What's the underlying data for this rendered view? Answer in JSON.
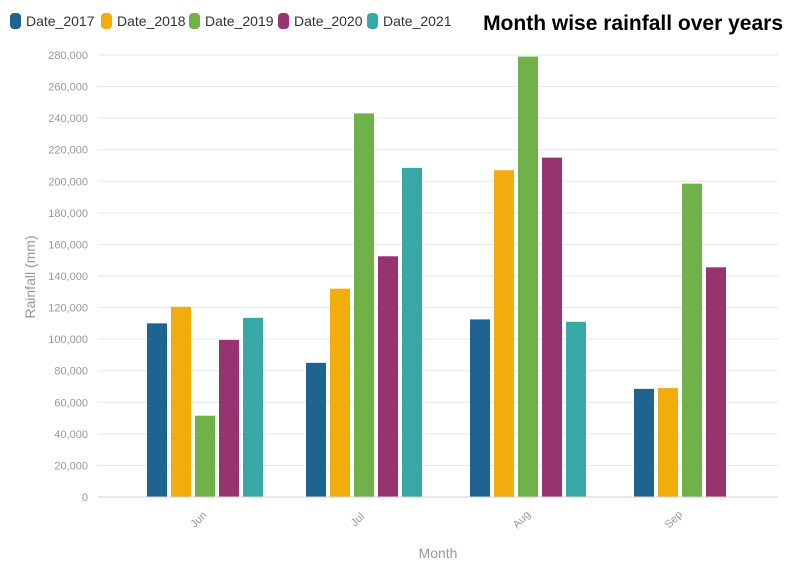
{
  "chart_data": {
    "type": "bar",
    "title": "Month wise rainfall over years",
    "xlabel": "Month",
    "ylabel": "Rainfall (mm)",
    "ylim": [
      0,
      280000
    ],
    "ytick_step": 20000,
    "grid": true,
    "legend_position": "top-left",
    "categories": [
      "Jun",
      "Jul",
      "Aug",
      "Sep"
    ],
    "series": [
      {
        "name": "Date_2017",
        "color": "#1f6391",
        "values": [
          110000,
          85000,
          112500,
          68500
        ]
      },
      {
        "name": "Date_2018",
        "color": "#f0ad0c",
        "values": [
          120500,
          132000,
          207000,
          69000
        ]
      },
      {
        "name": "Date_2019",
        "color": "#71b14a",
        "values": [
          51500,
          243000,
          279000,
          198500
        ]
      },
      {
        "name": "Date_2020",
        "color": "#97346f",
        "values": [
          99500,
          152500,
          215000,
          145500
        ]
      },
      {
        "name": "Date_2021",
        "color": "#38a8a6",
        "values": [
          113500,
          208500,
          111000,
          null
        ]
      }
    ]
  }
}
